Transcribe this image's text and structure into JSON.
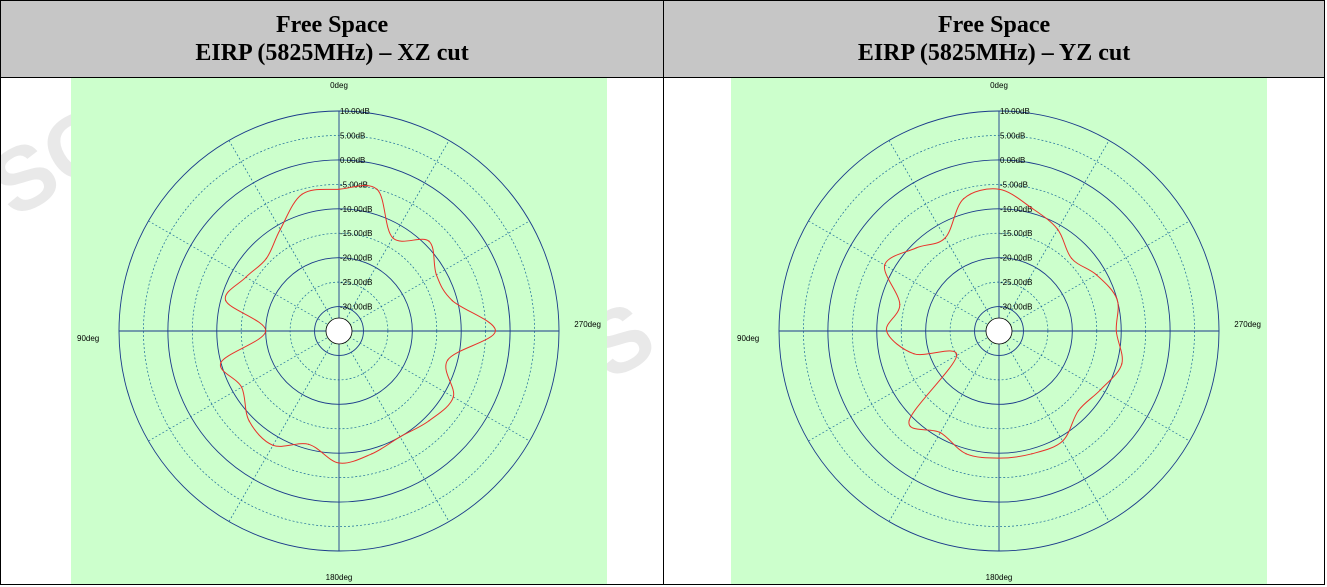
{
  "colors": {
    "plot_bg": "#ccffcc",
    "trace": "#e8322a",
    "grid_solid": "#1a3a8a",
    "grid_dotted": "#1a6a9a",
    "header_bg": "#c6c6c6"
  },
  "chart_data": [
    {
      "type": "polar-line",
      "title_line1": "Free Space",
      "title_line2": "EIRP (5825MHz) – XZ cut",
      "angle_labels": {
        "top": "0deg",
        "left": "90deg",
        "right": "270deg",
        "bottom": "180deg"
      },
      "radial_labels": [
        "10.00dB",
        "5.00dB",
        "0.00dB",
        "-5.00dB",
        "-10.00dB",
        "-15.00dB",
        "-20.00dB",
        "-25.00dB",
        "-30.00dB"
      ],
      "rlim": [
        -35,
        10
      ],
      "series": [
        {
          "angle_deg": [
            0,
            15,
            30,
            45,
            60,
            75,
            90,
            105,
            120,
            135,
            150,
            165,
            180,
            195,
            210,
            225,
            240,
            255,
            270,
            285,
            300,
            315,
            330,
            345
          ],
          "values_db": [
            -6,
            -6,
            -11,
            -14,
            -13,
            -11,
            -20,
            -10,
            -12,
            -9,
            -8,
            -11,
            -8,
            -9,
            -10,
            -9,
            -8,
            -12,
            -3,
            -11,
            -12,
            -9,
            -13,
            -5
          ]
        }
      ]
    },
    {
      "type": "polar-line",
      "title_line1": "Free Space",
      "title_line2": "EIRP (5825MHz) – YZ cut",
      "angle_labels": {
        "top": "0deg",
        "left": "90deg",
        "right": "270deg",
        "bottom": "180deg"
      },
      "radial_labels": [
        "10.00dB",
        "5.00dB",
        "0.00dB",
        "-5.00dB",
        "-10.00dB",
        "-15.00dB",
        "-20.00dB",
        "-25.00dB",
        "-30.00dB"
      ],
      "rlim": [
        -35,
        10
      ],
      "series": [
        {
          "angle_deg": [
            0,
            15,
            30,
            45,
            60,
            75,
            90,
            105,
            120,
            135,
            150,
            165,
            180,
            195,
            210,
            225,
            240,
            255,
            270,
            285,
            300,
            315,
            330,
            345
          ],
          "values_db": [
            -6,
            -7,
            -13,
            -11,
            -8,
            -14,
            -12,
            -17,
            -25,
            -9,
            -11,
            -9,
            -9,
            -9,
            -9,
            -12,
            -11,
            -9,
            -11,
            -10,
            -12,
            -14,
            -11,
            -9
          ]
        }
      ]
    }
  ]
}
